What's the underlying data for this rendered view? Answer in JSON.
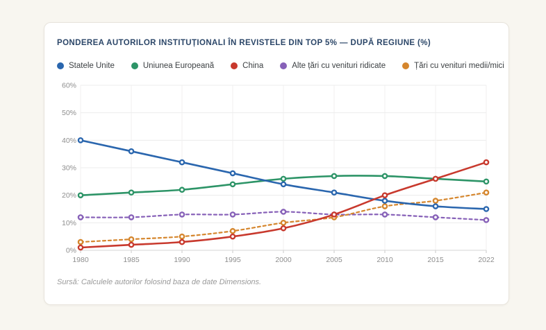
{
  "page": {
    "background_color": "#f8f6f0",
    "card_background_color": "#ffffff"
  },
  "header": {
    "title": "PONDEREA AUTORILOR INSTITUȚIONALI ÎN REVISTELE DIN TOP 5% — DUPĂ REGIUNE (%)",
    "title_color": "#2b4668"
  },
  "source": {
    "text": "Sursă: Calculele autorilor folosind baza de date Dimensions."
  },
  "chart_data": {
    "type": "line",
    "title": "PONDEREA AUTORILOR INSTITUȚIONALI ÎN REVISTELE DIN TOP 5% — DUPĂ REGIUNE (%)",
    "categories": [
      "1980",
      "1985",
      "1990",
      "1995",
      "2000",
      "2005",
      "2010",
      "2015",
      "2022"
    ],
    "series": [
      {
        "name": "Statele Unite",
        "color": "#2a66ae",
        "line_style": "solid",
        "values": [
          40,
          36,
          32,
          28,
          24,
          21,
          18,
          16,
          15
        ]
      },
      {
        "name": "Uniunea Europeană",
        "color": "#2d9467",
        "line_style": "solid",
        "values": [
          20,
          21,
          22,
          24,
          26,
          27,
          27,
          26,
          25
        ]
      },
      {
        "name": "China",
        "color": "#c8392d",
        "line_style": "solid",
        "values": [
          1,
          2,
          3,
          5,
          8,
          13,
          20,
          26,
          32
        ]
      },
      {
        "name": "Alte țări cu venituri ridicate",
        "color": "#8761b8",
        "line_style": "dashed",
        "values": [
          12,
          12,
          13,
          13,
          14,
          13,
          13,
          12,
          11
        ]
      },
      {
        "name": "Țări cu venituri medii/mici",
        "color": "#d5862d",
        "line_style": "dashed",
        "values": [
          3,
          4,
          5,
          7,
          10,
          12,
          16,
          18,
          21
        ]
      }
    ],
    "xlabel": "",
    "ylabel": "",
    "ylim": [
      0,
      60
    ],
    "ytick_step": 10,
    "ytick_suffix": "%",
    "grid": true,
    "legend_position": "top",
    "draw_order": [
      "Alte țări cu venituri ridicate",
      "Țări cu venituri medii/mici",
      "Uniunea Europeană",
      "Statele Unite",
      "China"
    ]
  }
}
